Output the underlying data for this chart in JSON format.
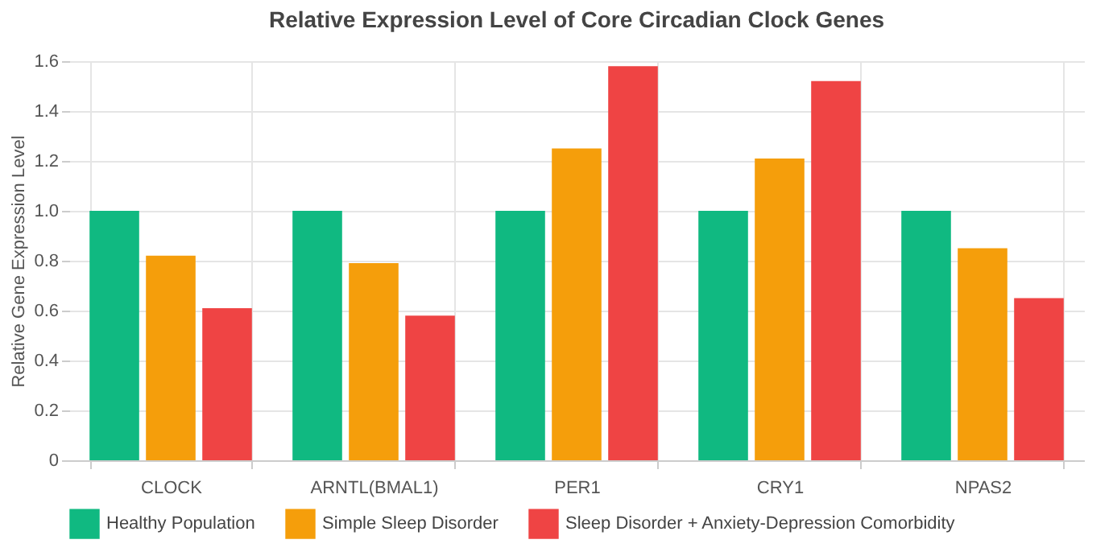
{
  "chart_data": {
    "type": "bar",
    "title": "Relative Expression Level of Core Circadian Clock Genes",
    "ylabel": "Relative Gene Expression Level",
    "categories": [
      "CLOCK",
      "ARNTL(BMAL1)",
      "PER1",
      "CRY1",
      "NPAS2"
    ],
    "series": [
      {
        "name": "Healthy Population",
        "color": "#10b981",
        "values": [
          1.0,
          1.0,
          1.0,
          1.0,
          1.0
        ]
      },
      {
        "name": "Simple Sleep Disorder",
        "color": "#f59e0b",
        "values": [
          0.82,
          0.79,
          1.25,
          1.21,
          0.85
        ]
      },
      {
        "name": "Sleep Disorder + Anxiety-Depression Comorbidity",
        "color": "#ef4444",
        "values": [
          0.61,
          0.58,
          1.58,
          1.52,
          0.65
        ]
      }
    ],
    "ylim": [
      0,
      1.6
    ],
    "yticks": [
      0,
      0.2,
      0.4,
      0.6,
      0.8,
      {
        "value": 1,
        "label": "1.0"
      },
      1.2,
      1.4,
      1.6
    ],
    "grid": true,
    "legend": "bottom"
  }
}
